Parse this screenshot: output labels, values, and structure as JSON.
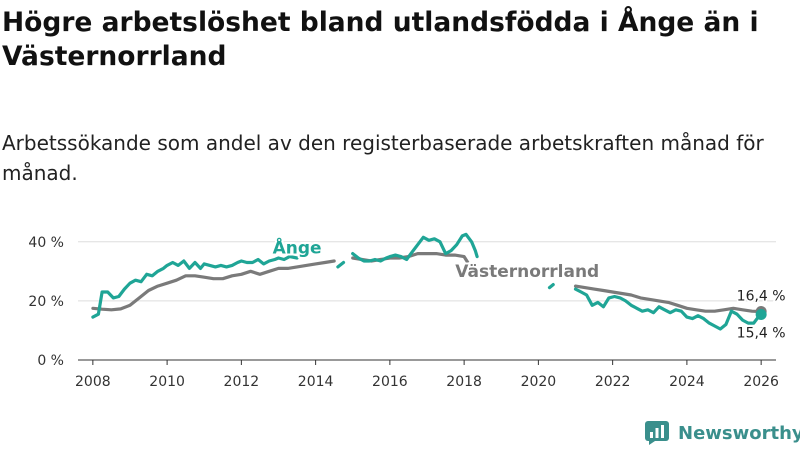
{
  "header": {
    "title": "Högre arbetslöshet bland utlandsfödda i Ånge än i Västernorrland",
    "subtitle": "Arbetssökande som andel av den registerbaserade arbetskraften månad för månad."
  },
  "brand": {
    "name": "Newsworthy"
  },
  "colors": {
    "ange": "#1fa596",
    "vasternorrland": "#7a7a7a",
    "grid": "#dddddd",
    "axis": "#333333"
  },
  "chart_data": {
    "type": "line",
    "title": "Högre arbetslöshet bland utlandsfödda i Ånge än i Västernorrland",
    "xlabel": "",
    "ylabel": "",
    "xlim": [
      2007.6,
      2026.4
    ],
    "ylim": [
      0,
      45
    ],
    "grid": true,
    "y_ticks": [
      0,
      20,
      40
    ],
    "y_tick_labels": [
      "0 %",
      "20 %",
      "40 %"
    ],
    "x_ticks": [
      2008,
      2010,
      2012,
      2014,
      2016,
      2018,
      2020,
      2022,
      2024,
      2026
    ],
    "x_tick_labels": [
      "2008",
      "2010",
      "2012",
      "2014",
      "2016",
      "2018",
      "2020",
      "2022",
      "2024",
      "2026"
    ],
    "series": [
      {
        "name": "Västernorrland",
        "color": "#7a7a7a",
        "segments": [
          [
            [
              2008.0,
              17.5
            ],
            [
              2008.25,
              17.2
            ],
            [
              2008.5,
              17.0
            ],
            [
              2008.75,
              17.3
            ],
            [
              2009.0,
              18.5
            ],
            [
              2009.25,
              21
            ],
            [
              2009.5,
              23.5
            ],
            [
              2009.75,
              25
            ],
            [
              2010.0,
              26
            ],
            [
              2010.25,
              27
            ],
            [
              2010.5,
              28.5
            ],
            [
              2010.75,
              28.5
            ],
            [
              2011.0,
              28
            ],
            [
              2011.25,
              27.5
            ],
            [
              2011.5,
              27.5
            ],
            [
              2011.75,
              28.5
            ],
            [
              2012.0,
              29
            ],
            [
              2012.25,
              30
            ],
            [
              2012.5,
              29
            ],
            [
              2012.75,
              30
            ],
            [
              2013.0,
              31
            ],
            [
              2013.25,
              31
            ],
            [
              2013.5,
              31.5
            ],
            [
              2013.75,
              32
            ],
            [
              2014.0,
              32.5
            ],
            [
              2014.25,
              33
            ],
            [
              2014.5,
              33.5
            ]
          ],
          [
            [
              2015.0,
              34.5
            ],
            [
              2015.25,
              34
            ],
            [
              2015.5,
              33.5
            ],
            [
              2015.75,
              34
            ],
            [
              2016.0,
              34.5
            ],
            [
              2016.25,
              34.5
            ],
            [
              2016.5,
              35
            ],
            [
              2016.75,
              36
            ],
            [
              2017.0,
              36
            ],
            [
              2017.25,
              36
            ],
            [
              2017.5,
              35.5
            ],
            [
              2017.75,
              35.5
            ],
            [
              2018.0,
              35
            ],
            [
              2018.1,
              33
            ]
          ],
          [
            [
              2021.0,
              25
            ],
            [
              2021.25,
              24.5
            ],
            [
              2021.5,
              24
            ],
            [
              2021.75,
              23.5
            ],
            [
              2022.0,
              23
            ],
            [
              2022.25,
              22.5
            ],
            [
              2022.5,
              22
            ],
            [
              2022.75,
              21
            ],
            [
              2023.0,
              20.5
            ],
            [
              2023.25,
              20
            ],
            [
              2023.5,
              19.5
            ],
            [
              2023.75,
              18.5
            ],
            [
              2024.0,
              17.5
            ],
            [
              2024.25,
              17
            ],
            [
              2024.5,
              16.5
            ],
            [
              2024.75,
              16.5
            ],
            [
              2025.0,
              17
            ],
            [
              2025.25,
              17.5
            ],
            [
              2025.5,
              17
            ],
            [
              2025.75,
              16.5
            ],
            [
              2026.0,
              16.4
            ]
          ]
        ]
      },
      {
        "name": "Ånge",
        "color": "#1fa596",
        "segments": [
          [
            [
              2008.0,
              14.5
            ],
            [
              2008.15,
              15.5
            ],
            [
              2008.25,
              23
            ],
            [
              2008.4,
              23
            ],
            [
              2008.55,
              21
            ],
            [
              2008.7,
              21.5
            ],
            [
              2008.85,
              24
            ],
            [
              2009.0,
              26
            ],
            [
              2009.15,
              27
            ],
            [
              2009.3,
              26.5
            ],
            [
              2009.45,
              29
            ],
            [
              2009.6,
              28.5
            ],
            [
              2009.75,
              30
            ],
            [
              2009.9,
              31
            ],
            [
              2010.0,
              32
            ],
            [
              2010.15,
              33
            ],
            [
              2010.3,
              32
            ],
            [
              2010.45,
              33.5
            ],
            [
              2010.6,
              31
            ],
            [
              2010.75,
              33
            ],
            [
              2010.9,
              31
            ],
            [
              2011.0,
              32.5
            ],
            [
              2011.15,
              32
            ],
            [
              2011.3,
              31.5
            ],
            [
              2011.45,
              32
            ],
            [
              2011.6,
              31.5
            ],
            [
              2011.75,
              32
            ],
            [
              2011.9,
              33
            ],
            [
              2012.0,
              33.5
            ],
            [
              2012.15,
              33
            ],
            [
              2012.3,
              33
            ],
            [
              2012.45,
              34
            ],
            [
              2012.6,
              32.5
            ],
            [
              2012.75,
              33.5
            ],
            [
              2012.9,
              34
            ],
            [
              2013.0,
              34.5
            ],
            [
              2013.15,
              34
            ],
            [
              2013.3,
              35
            ],
            [
              2013.5,
              34.5
            ]
          ],
          [
            [
              2014.6,
              31.5
            ],
            [
              2014.75,
              33
            ]
          ],
          [
            [
              2015.0,
              36
            ],
            [
              2015.15,
              34.5
            ],
            [
              2015.3,
              33.5
            ],
            [
              2015.45,
              33.5
            ],
            [
              2015.6,
              34
            ],
            [
              2015.75,
              33.5
            ],
            [
              2015.9,
              34.5
            ],
            [
              2016.0,
              35
            ],
            [
              2016.15,
              35.5
            ],
            [
              2016.3,
              35
            ],
            [
              2016.45,
              34
            ],
            [
              2016.6,
              36.5
            ],
            [
              2016.75,
              39
            ],
            [
              2016.9,
              41.5
            ],
            [
              2017.05,
              40.5
            ],
            [
              2017.2,
              41
            ],
            [
              2017.35,
              40
            ],
            [
              2017.5,
              36
            ],
            [
              2017.65,
              37
            ],
            [
              2017.8,
              39
            ],
            [
              2017.95,
              42
            ],
            [
              2018.05,
              42.5
            ],
            [
              2018.2,
              40
            ],
            [
              2018.3,
              37
            ],
            [
              2018.35,
              35
            ]
          ],
          [
            [
              2020.3,
              24.5
            ],
            [
              2020.4,
              25.5
            ]
          ],
          [
            [
              2021.0,
              24
            ],
            [
              2021.15,
              23
            ],
            [
              2021.3,
              22
            ],
            [
              2021.45,
              18.5
            ],
            [
              2021.6,
              19.5
            ],
            [
              2021.75,
              18
            ],
            [
              2021.9,
              21
            ],
            [
              2022.05,
              21.5
            ],
            [
              2022.2,
              21
            ],
            [
              2022.35,
              20
            ],
            [
              2022.5,
              18.5
            ],
            [
              2022.65,
              17.5
            ],
            [
              2022.8,
              16.5
            ],
            [
              2022.95,
              17
            ],
            [
              2023.1,
              16
            ],
            [
              2023.25,
              18
            ],
            [
              2023.4,
              17
            ],
            [
              2023.55,
              16
            ],
            [
              2023.7,
              17
            ],
            [
              2023.85,
              16.5
            ],
            [
              2024.0,
              14.5
            ],
            [
              2024.15,
              14
            ],
            [
              2024.3,
              15
            ],
            [
              2024.45,
              14
            ],
            [
              2024.6,
              12.5
            ],
            [
              2024.75,
              11.5
            ],
            [
              2024.9,
              10.5
            ],
            [
              2025.05,
              12
            ],
            [
              2025.2,
              16.5
            ],
            [
              2025.35,
              15.5
            ],
            [
              2025.5,
              13.5
            ],
            [
              2025.65,
              12.5
            ],
            [
              2025.8,
              12.5
            ],
            [
              2025.95,
              15
            ],
            [
              2026.0,
              15.4
            ]
          ]
        ]
      }
    ],
    "annotations": [
      {
        "text": "Ånge",
        "series": "Ånge",
        "x": 2013.5,
        "y": 36
      },
      {
        "text": "Västernorrland",
        "series": "Västernorrland",
        "x": 2019.7,
        "y": 28
      },
      {
        "text": "16,4 %",
        "series": "Västernorrland",
        "x": 2026.0,
        "y": 16.4,
        "value": 16.4
      },
      {
        "text": "15,4 %",
        "series": "Ånge",
        "x": 2026.0,
        "y": 15.4,
        "value": 15.4
      }
    ]
  }
}
